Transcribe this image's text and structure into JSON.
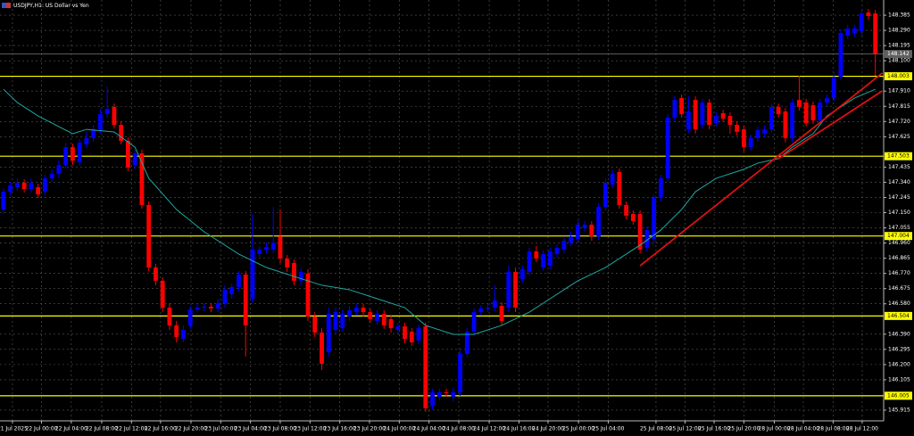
{
  "chart_data": {
    "type": "candlestick",
    "title": "USDJPY,H1: US Dollar vs Yen",
    "up_color": "#0000ff",
    "down_color": "#ff0000",
    "background": "#000000",
    "grid": true,
    "xlim": [
      -0.5,
      127.2
    ],
    "ylim": [
      145.848,
      148.48
    ],
    "yticks": [
      {
        "value": 148.385,
        "label": "148.385"
      },
      {
        "value": 148.29,
        "label": "148.290"
      },
      {
        "value": 148.195,
        "label": "148.195"
      },
      {
        "value": 148.1,
        "label": "148.100"
      },
      {
        "value": 147.91,
        "label": "147.910"
      },
      {
        "value": 147.815,
        "label": "147.815"
      },
      {
        "value": 147.72,
        "label": "147.720"
      },
      {
        "value": 147.625,
        "label": "147.625"
      },
      {
        "value": 147.435,
        "label": "147.435"
      },
      {
        "value": 147.34,
        "label": "147.340"
      },
      {
        "value": 147.245,
        "label": "147.245"
      },
      {
        "value": 147.15,
        "label": "147.150"
      },
      {
        "value": 147.055,
        "label": "147.055"
      },
      {
        "value": 146.96,
        "label": "146.960"
      },
      {
        "value": 146.865,
        "label": "146.865"
      },
      {
        "value": 146.77,
        "label": "146.770"
      },
      {
        "value": 146.675,
        "label": "146.675"
      },
      {
        "value": 146.58,
        "label": "146.580"
      },
      {
        "value": 146.39,
        "label": "146.390"
      },
      {
        "value": 146.295,
        "label": "146.295"
      },
      {
        "value": 146.2,
        "label": "146.200"
      },
      {
        "value": 146.105,
        "label": "146.105"
      },
      {
        "value": 145.915,
        "label": "145.915"
      }
    ],
    "xticks": [
      {
        "value": 1.3,
        "label": "21 Jul 2025"
      },
      {
        "value": 5.5,
        "label": "22 Jul 00:00"
      },
      {
        "value": 9.8,
        "label": "22 Jul 04:00"
      },
      {
        "value": 14.2,
        "label": "22 Jul 08:00"
      },
      {
        "value": 18.5,
        "label": "22 Jul 12:00"
      },
      {
        "value": 22.7,
        "label": "22 Jul 16:00"
      },
      {
        "value": 27.1,
        "label": "22 Jul 20:00"
      },
      {
        "value": 31.4,
        "label": "23 Jul 00:00"
      },
      {
        "value": 35.7,
        "label": "23 Jul 04:00"
      },
      {
        "value": 40,
        "label": "23 Jul 08:00"
      },
      {
        "value": 44.3,
        "label": "23 Jul 12:00"
      },
      {
        "value": 48.6,
        "label": "23 Jul 16:00"
      },
      {
        "value": 52.9,
        "label": "23 Jul 20:00"
      },
      {
        "value": 57.2,
        "label": "24 Jul 00:00"
      },
      {
        "value": 61.5,
        "label": "24 Jul 04:00"
      },
      {
        "value": 65.8,
        "label": "24 Jul 08:00"
      },
      {
        "value": 70.2,
        "label": "24 Jul 12:00"
      },
      {
        "value": 74.5,
        "label": "24 Jul 16:00"
      },
      {
        "value": 78.7,
        "label": "24 Jul 20:00"
      },
      {
        "value": 83.1,
        "label": "25 Jul 00:00"
      },
      {
        "value": 87.4,
        "label": "25 Jul 04:00"
      },
      {
        "value": 94.3,
        "label": "25 Jul 08:00"
      },
      {
        "value": 98.5,
        "label": "25 Jul 12:00"
      },
      {
        "value": 102.7,
        "label": "25 Jul 16:00"
      },
      {
        "value": 107,
        "label": "25 Jul 20:00"
      },
      {
        "value": 111.4,
        "label": "28 Jul 00:00"
      },
      {
        "value": 115.6,
        "label": "28 Jul 04:00"
      },
      {
        "value": 119.9,
        "label": "28 Jul 08:00"
      },
      {
        "value": 124.1,
        "label": "28 Jul 12:00"
      }
    ],
    "open": [
      147.17,
      147.281,
      147.309,
      147.337,
      147.298,
      147.309,
      147.281,
      147.365,
      147.393,
      147.448,
      147.56,
      147.465,
      147.577,
      147.616,
      147.671,
      147.766,
      147.811,
      147.699,
      147.599,
      147.448,
      147.521,
      147.198,
      146.807,
      146.724,
      146.556,
      146.445,
      146.361,
      146.445,
      146.545,
      146.556,
      146.562,
      146.551,
      146.584,
      146.64,
      146.685,
      146.763,
      146.612,
      146.891,
      146.919,
      146.919,
      147.002,
      146.863,
      146.835,
      146.724,
      146.768,
      146.501,
      146.4,
      146.277,
      146.417,
      146.428,
      146.501,
      146.528,
      146.556,
      146.528,
      146.473,
      146.517,
      146.484,
      146.417,
      146.439,
      146.406,
      146.35,
      146.439,
      145.943,
      145.999,
      146.027,
      145.999,
      146.027,
      146.266,
      146.406,
      146.528,
      146.551,
      146.556,
      146.567,
      146.556,
      146.779,
      146.735,
      146.779,
      146.908,
      146.807,
      146.818,
      146.891,
      146.919,
      146.963,
      146.986,
      147.053,
      147.075,
      147.002,
      147.186,
      147.326,
      147.404,
      147.198,
      147.142,
      147.142,
      146.93,
      146.986,
      147.242,
      147.365,
      147.744,
      147.867,
      147.671,
      147.855,
      147.699,
      147.839,
      147.71,
      147.772,
      147.755,
      147.699,
      147.671,
      147.56,
      147.616,
      147.644,
      147.671,
      147.811,
      147.783,
      147.616,
      147.855,
      147.839,
      147.822,
      147.727,
      147.839,
      147.867,
      148.0,
      148.257,
      148.274,
      148.285,
      148.402,
      148.396
    ],
    "high": [
      147.303,
      147.343,
      147.365,
      147.359,
      147.365,
      147.331,
      147.387,
      147.421,
      147.476,
      147.588,
      147.582,
      147.61,
      147.655,
      147.699,
      147.8,
      147.939,
      147.833,
      147.722,
      147.621,
      147.543,
      147.543,
      147.22,
      146.83,
      146.746,
      146.584,
      146.473,
      146.445,
      146.567,
      146.579,
      146.584,
      146.584,
      146.612,
      146.696,
      146.707,
      146.785,
      146.785,
      147.142,
      146.941,
      146.963,
      147.186,
      147.17,
      146.885,
      146.857,
      146.807,
      146.796,
      146.528,
      146.428,
      146.556,
      146.556,
      146.545,
      146.567,
      146.584,
      146.579,
      146.551,
      146.54,
      146.54,
      146.506,
      146.462,
      146.462,
      146.428,
      146.45,
      146.462,
      146.049,
      146.049,
      146.049,
      146.054,
      146.289,
      146.428,
      146.551,
      146.573,
      146.579,
      146.696,
      146.59,
      146.818,
      146.807,
      146.818,
      146.93,
      146.941,
      146.913,
      146.93,
      146.952,
      147.002,
      147.03,
      147.103,
      147.097,
      147.097,
      147.209,
      147.365,
      147.421,
      147.426,
      147.22,
      147.164,
      147.164,
      147.064,
      147.264,
      147.387,
      147.766,
      147.878,
      147.889,
      147.878,
      147.878,
      147.861,
      147.861,
      147.777,
      147.794,
      147.777,
      147.722,
      147.694,
      147.638,
      147.688,
      147.694,
      147.833,
      147.833,
      147.805,
      147.861,
      148.006,
      147.861,
      147.844,
      147.861,
      147.889,
      148.023,
      148.296,
      148.324,
      148.324,
      148.419,
      148.424,
      148.419
    ],
    "low": [
      147.142,
      147.259,
      147.287,
      147.276,
      147.276,
      147.242,
      147.259,
      147.343,
      147.37,
      147.426,
      147.448,
      147.443,
      147.554,
      147.593,
      147.644,
      147.744,
      147.677,
      147.577,
      147.409,
      147.421,
      147.175,
      146.785,
      146.696,
      146.528,
      146.417,
      146.339,
      146.339,
      146.423,
      146.528,
      146.534,
      146.528,
      146.528,
      146.556,
      146.612,
      146.657,
      146.25,
      146.584,
      146.869,
      146.896,
      146.896,
      146.835,
      146.779,
      146.696,
      146.696,
      146.473,
      146.372,
      146.166,
      146.25,
      146.389,
      146.406,
      146.473,
      146.506,
      146.501,
      146.462,
      146.45,
      146.423,
      146.4,
      146.395,
      146.333,
      146.316,
      146.328,
      145.904,
      145.915,
      145.976,
      145.999,
      145.971,
      146.004,
      146.244,
      146.383,
      146.506,
      146.528,
      146.534,
      146.445,
      146.528,
      146.528,
      146.713,
      146.757,
      146.841,
      146.785,
      146.796,
      146.869,
      146.896,
      146.941,
      146.963,
      147.03,
      146.974,
      146.98,
      147.164,
      147.303,
      147.175,
      147.108,
      147.075,
      146.896,
      146.908,
      146.963,
      147.22,
      147.343,
      147.722,
      147.744,
      147.649,
      147.644,
      147.677,
      147.671,
      147.688,
      147.716,
      147.644,
      147.632,
      147.532,
      147.538,
      147.593,
      147.621,
      147.649,
      147.744,
      147.588,
      147.588,
      147.789,
      147.688,
      147.705,
      147.705,
      147.816,
      147.844,
      147.978,
      148.235,
      148.251,
      148.257,
      148.357,
      148.006
    ],
    "close": [
      147.281,
      147.32,
      147.337,
      147.298,
      147.337,
      147.264,
      147.365,
      147.393,
      147.448,
      147.56,
      147.476,
      147.588,
      147.616,
      147.671,
      147.766,
      147.8,
      147.699,
      147.599,
      147.432,
      147.521,
      147.198,
      146.807,
      146.724,
      146.556,
      146.445,
      146.372,
      146.417,
      146.545,
      146.556,
      146.562,
      146.551,
      146.584,
      146.668,
      146.685,
      146.763,
      146.445,
      146.919,
      146.919,
      146.935,
      146.963,
      146.863,
      146.807,
      146.724,
      146.779,
      146.501,
      146.4,
      146.205,
      146.517,
      146.528,
      146.517,
      146.54,
      146.556,
      146.528,
      146.484,
      146.517,
      146.445,
      146.428,
      146.439,
      146.361,
      146.339,
      146.428,
      145.926,
      146.027,
      146.027,
      146.021,
      146.027,
      146.266,
      146.406,
      146.528,
      146.551,
      146.556,
      146.601,
      146.473,
      146.779,
      146.556,
      146.796,
      146.908,
      146.863,
      146.891,
      146.908,
      146.93,
      146.974,
      147.002,
      147.075,
      147.075,
      147.002,
      147.186,
      147.337,
      147.393,
      147.198,
      147.131,
      147.097,
      146.919,
      147.041,
      147.242,
      147.365,
      147.744,
      147.855,
      147.766,
      147.783,
      147.671,
      147.839,
      147.699,
      147.755,
      147.738,
      147.699,
      147.655,
      147.56,
      147.616,
      147.666,
      147.671,
      147.811,
      147.766,
      147.616,
      147.839,
      147.811,
      147.71,
      147.727,
      147.839,
      147.867,
      148.0,
      148.274,
      148.302,
      148.302,
      148.396,
      148.38,
      148.142
    ],
    "ma": {
      "color": "#1fa8a0",
      "x": [
        0,
        2,
        5,
        10,
        12,
        16,
        19,
        21,
        25,
        29,
        34,
        38,
        42,
        46,
        50,
        54,
        58,
        61,
        65,
        68,
        72,
        76,
        79,
        83,
        87,
        90,
        92,
        95,
        98,
        100,
        103,
        107,
        109,
        112,
        114,
        117,
        119,
        123,
        126
      ],
      "values": [
        147.922,
        147.839,
        147.755,
        147.644,
        147.671,
        147.655,
        147.56,
        147.365,
        147.17,
        147.03,
        146.891,
        146.807,
        146.751,
        146.696,
        146.668,
        146.612,
        146.556,
        146.445,
        146.389,
        146.389,
        146.445,
        146.528,
        146.612,
        146.724,
        146.807,
        146.891,
        146.947,
        147.041,
        147.17,
        147.281,
        147.365,
        147.421,
        147.46,
        147.488,
        147.56,
        147.644,
        147.755,
        147.867,
        147.922
      ]
    },
    "trendlines": [
      {
        "color": "#e01010",
        "x": [
          92,
          127
        ],
        "values": [
          146.818,
          148.023
        ]
      },
      {
        "color": "#e01010",
        "x": [
          112,
          127
        ],
        "values": [
          147.488,
          147.911
        ]
      }
    ],
    "levels": {
      "color": "#ffff00",
      "values": [
        148.003,
        147.503,
        147.004,
        146.504,
        146.005
      ]
    },
    "current_price": 148.142
  }
}
